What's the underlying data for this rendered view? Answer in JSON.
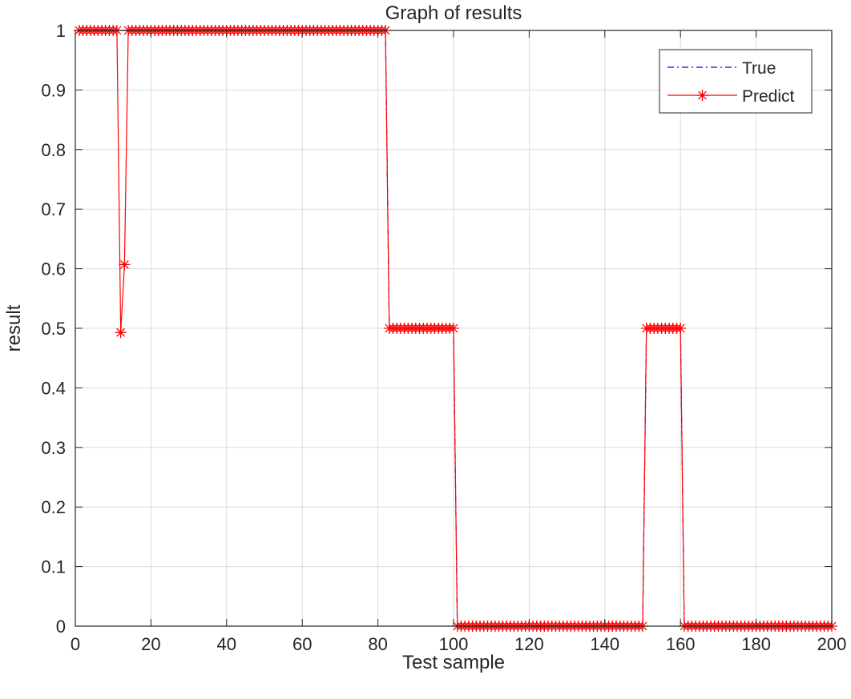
{
  "chart_data": {
    "type": "line",
    "title": "Graph of results",
    "xlabel": "Test sample",
    "ylabel": "result",
    "xlim": [
      0,
      200
    ],
    "ylim": [
      0,
      1
    ],
    "xticks": [
      "0",
      "20",
      "40",
      "60",
      "80",
      "100",
      "120",
      "140",
      "160",
      "180",
      "200"
    ],
    "yticks": [
      "0",
      "0.1",
      "0.2",
      "0.3",
      "0.4",
      "0.5",
      "0.6",
      "0.7",
      "0.8",
      "0.9",
      "1"
    ],
    "grid": true,
    "legend_position": "top-right",
    "segments": {
      "true_runs": [
        {
          "from": 1,
          "to": 82,
          "value": 1
        },
        {
          "from": 83,
          "to": 100,
          "value": 0.5
        },
        {
          "from": 101,
          "to": 150,
          "value": 0
        },
        {
          "from": 151,
          "to": 160,
          "value": 0.5
        },
        {
          "from": 161,
          "to": 200,
          "value": 0
        }
      ],
      "predict_overrides": [
        {
          "x": 12,
          "value": 0.493
        },
        {
          "x": 13,
          "value": 0.607
        }
      ]
    },
    "series": [
      {
        "name": "True",
        "color": "#0000ff",
        "line_style": "dash-dot",
        "marker": "none"
      },
      {
        "name": "Predict",
        "color": "#ff0000",
        "line_style": "solid",
        "marker": "asterisk"
      }
    ]
  }
}
